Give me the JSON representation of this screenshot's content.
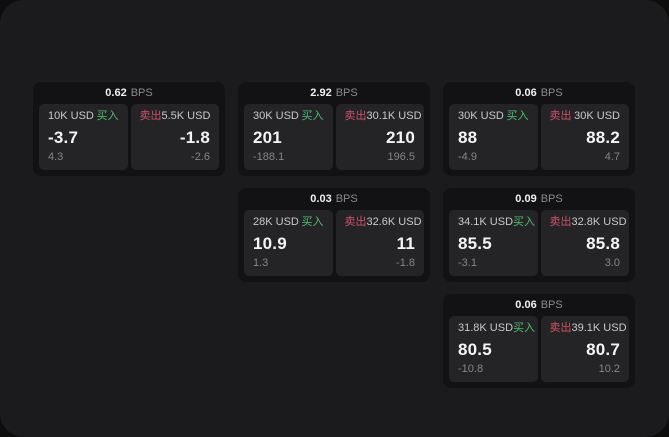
{
  "labels": {
    "bps_unit": "BPS",
    "buy": "买入",
    "sell": "卖出"
  },
  "colors": {
    "buy_green": "#4cbf6e",
    "sell_red": "#cf5066",
    "canvas_bg": "#1b1b1d",
    "card_bg": "#121214",
    "panel_bg": "#242426"
  },
  "cards": [
    {
      "bps": "0.62",
      "buy": {
        "size": "10K USD",
        "price": "-3.7",
        "delta": "4.3"
      },
      "sell": {
        "size": "5.5K USD",
        "price": "-1.8",
        "delta": "-2.6"
      }
    },
    {
      "bps": "2.92",
      "buy": {
        "size": "30K USD",
        "price": "201",
        "delta": "-188.1"
      },
      "sell": {
        "size": "30.1K USD",
        "price": "210",
        "delta": "196.5"
      }
    },
    {
      "bps": "0.06",
      "buy": {
        "size": "30K USD",
        "price": "88",
        "delta": "-4.9"
      },
      "sell": {
        "size": "30K USD",
        "price": "88.2",
        "delta": "4.7"
      }
    },
    {
      "bps": "0.03",
      "buy": {
        "size": "28K USD",
        "price": "10.9",
        "delta": "1.3"
      },
      "sell": {
        "size": "32.6K USD",
        "price": "11",
        "delta": "-1.8"
      }
    },
    {
      "bps": "0.09",
      "buy": {
        "size": "34.1K USD",
        "price": "85.5",
        "delta": "-3.1"
      },
      "sell": {
        "size": "32.8K USD",
        "price": "85.8",
        "delta": "3.0"
      }
    },
    {
      "bps": "0.06",
      "buy": {
        "size": "31.8K USD",
        "price": "80.5",
        "delta": "-10.8"
      },
      "sell": {
        "size": "39.1K USD",
        "price": "80.7",
        "delta": "10.2"
      }
    }
  ]
}
